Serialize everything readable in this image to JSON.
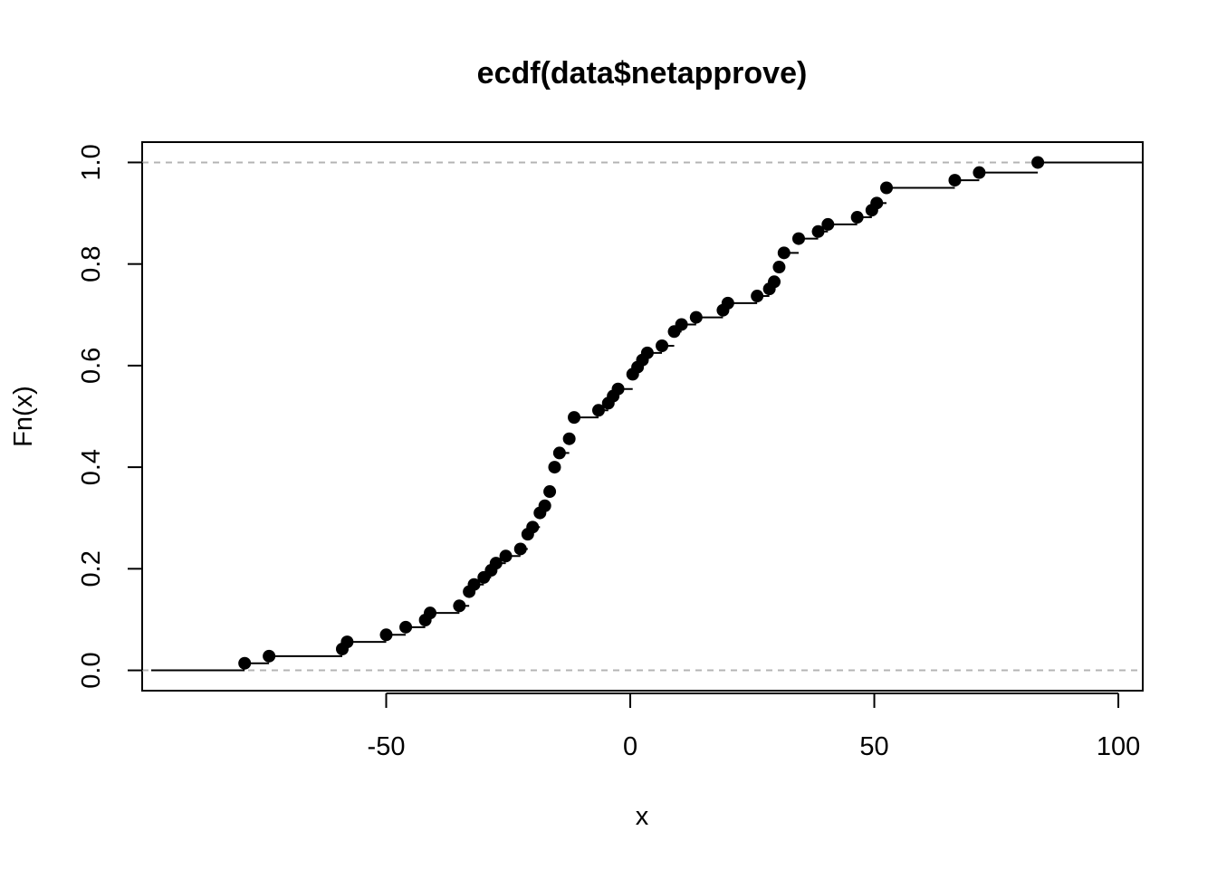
{
  "chart_data": {
    "type": "ecdf",
    "title": "ecdf(data$netapprove)",
    "xlabel": "x",
    "ylabel": "Fn(x)",
    "xlim": [
      -100,
      105
    ],
    "ylim": [
      -0.04,
      1.04
    ],
    "x_ticks": [
      -50,
      0,
      50,
      100
    ],
    "y_ticks": [
      0.0,
      0.2,
      0.4,
      0.6,
      0.8,
      1.0
    ],
    "x_tick_labels": [
      "-50",
      "0",
      "50",
      "100"
    ],
    "y_tick_labels": [
      "0.0",
      "0.2",
      "0.4",
      "0.6",
      "0.8",
      "1.0"
    ],
    "reference_lines": [
      0,
      1
    ],
    "grid": false,
    "points": [
      {
        "x": -79,
        "y": 0.014
      },
      {
        "x": -74,
        "y": 0.028
      },
      {
        "x": -59,
        "y": 0.042
      },
      {
        "x": -58,
        "y": 0.056
      },
      {
        "x": -50,
        "y": 0.07
      },
      {
        "x": -46,
        "y": 0.085
      },
      {
        "x": -42,
        "y": 0.099
      },
      {
        "x": -41,
        "y": 0.113
      },
      {
        "x": -35,
        "y": 0.127
      },
      {
        "x": -33,
        "y": 0.155
      },
      {
        "x": -32,
        "y": 0.169
      },
      {
        "x": -30,
        "y": 0.183
      },
      {
        "x": -28.5,
        "y": 0.197
      },
      {
        "x": -27.5,
        "y": 0.211
      },
      {
        "x": -25.5,
        "y": 0.225
      },
      {
        "x": -22.5,
        "y": 0.239
      },
      {
        "x": -21,
        "y": 0.268
      },
      {
        "x": -20,
        "y": 0.282
      },
      {
        "x": -18.5,
        "y": 0.31
      },
      {
        "x": -17.5,
        "y": 0.324
      },
      {
        "x": -16.5,
        "y": 0.352
      },
      {
        "x": -15.5,
        "y": 0.4
      },
      {
        "x": -14.5,
        "y": 0.428
      },
      {
        "x": -12.5,
        "y": 0.456
      },
      {
        "x": -11.5,
        "y": 0.498
      },
      {
        "x": -6.5,
        "y": 0.512
      },
      {
        "x": -4.5,
        "y": 0.526
      },
      {
        "x": -3.5,
        "y": 0.54
      },
      {
        "x": -2.5,
        "y": 0.554
      },
      {
        "x": 0.5,
        "y": 0.583
      },
      {
        "x": 1.5,
        "y": 0.597
      },
      {
        "x": 2.5,
        "y": 0.611
      },
      {
        "x": 3.5,
        "y": 0.625
      },
      {
        "x": 6.5,
        "y": 0.639
      },
      {
        "x": 9,
        "y": 0.667
      },
      {
        "x": 10.5,
        "y": 0.681
      },
      {
        "x": 13.5,
        "y": 0.695
      },
      {
        "x": 19,
        "y": 0.709
      },
      {
        "x": 20,
        "y": 0.723
      },
      {
        "x": 26,
        "y": 0.737
      },
      {
        "x": 28.5,
        "y": 0.751
      },
      {
        "x": 29.5,
        "y": 0.765
      },
      {
        "x": 30.5,
        "y": 0.794
      },
      {
        "x": 31.5,
        "y": 0.822
      },
      {
        "x": 34.5,
        "y": 0.85
      },
      {
        "x": 38.5,
        "y": 0.864
      },
      {
        "x": 40.5,
        "y": 0.878
      },
      {
        "x": 46.5,
        "y": 0.892
      },
      {
        "x": 49.5,
        "y": 0.906
      },
      {
        "x": 50.5,
        "y": 0.92
      },
      {
        "x": 52.5,
        "y": 0.95
      },
      {
        "x": 66.5,
        "y": 0.965
      },
      {
        "x": 71.5,
        "y": 0.98
      },
      {
        "x": 83.5,
        "y": 1.0
      }
    ],
    "colors": {
      "points": "#000000",
      "steps": "#000000",
      "reference": "#b4b4b4",
      "frame": "#000000"
    }
  }
}
